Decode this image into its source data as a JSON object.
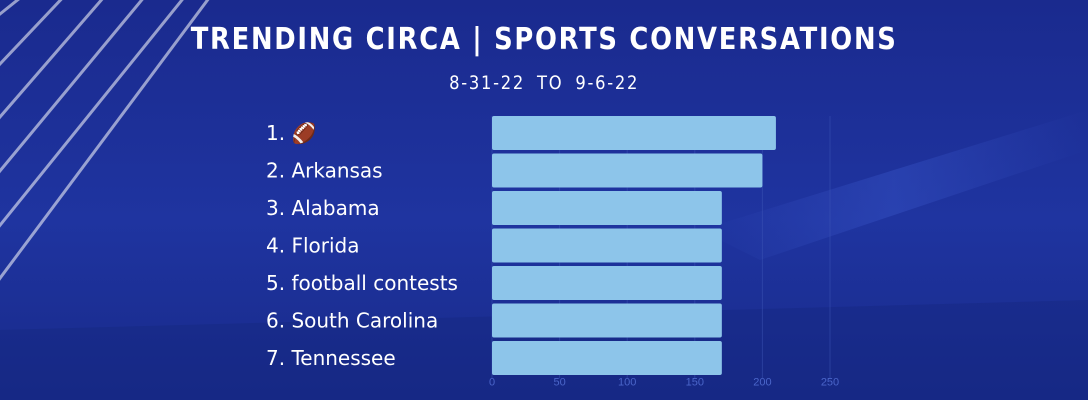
{
  "header": {
    "title": "TRENDING CIRCA | SPORTS CONVERSATIONS",
    "date_range": "8-31-22  TO  9-6-22"
  },
  "colors": {
    "background": "#1b2c8f",
    "bar": "#8dc5ea",
    "text": "#ffffff",
    "tick": "#4a65c9"
  },
  "chart_data": {
    "type": "bar",
    "orientation": "horizontal",
    "categories": [
      "1. 🏈",
      "2. Arkansas",
      "3. Alabama",
      "4. Florida",
      "5. football contests",
      "6. South Carolina",
      "7. Tennessee"
    ],
    "values": [
      210,
      200,
      170,
      170,
      170,
      170,
      170
    ],
    "xlim": [
      0,
      250
    ],
    "xticks": [
      0,
      50,
      100,
      150,
      200,
      250
    ],
    "grid": true
  }
}
